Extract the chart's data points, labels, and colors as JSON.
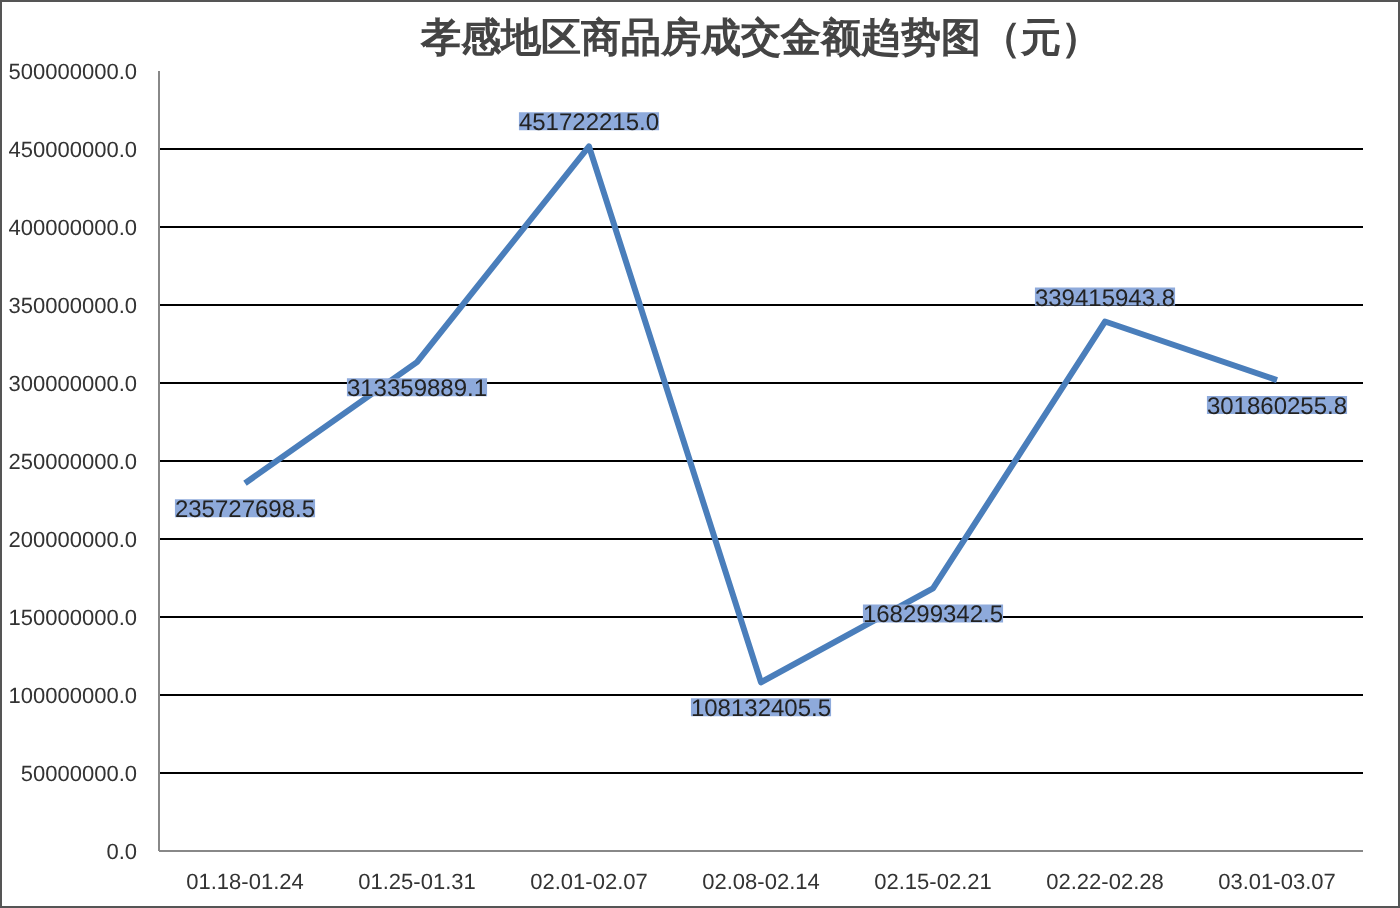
{
  "chart_data": {
    "type": "line",
    "title": "孝感地区商品房成交金额趋势图（元）",
    "categories": [
      "01.18-01.24",
      "01.25-01.31",
      "02.01-02.07",
      "02.08-02.14",
      "02.15-02.21",
      "02.22-02.28",
      "03.01-03.07"
    ],
    "series": [
      {
        "color": "#4a7ebb",
        "values": [
          235727698.5,
          313359889.1,
          451722215.0,
          108132405.5,
          168299342.5,
          339415943.8,
          301860255.8
        ],
        "value_labels": [
          "235727698.5",
          "313359889.1",
          "451722215.0",
          "108132405.5",
          "168299342.5",
          "339415943.8",
          "301860255.8"
        ]
      }
    ],
    "ylim": [
      0,
      500000000
    ],
    "yticks": [
      {
        "value": 0,
        "label": "0.0"
      },
      {
        "value": 50000000,
        "label": "50000000.0"
      },
      {
        "value": 100000000,
        "label": "100000000.0"
      },
      {
        "value": 150000000,
        "label": "150000000.0"
      },
      {
        "value": 200000000,
        "label": "200000000.0"
      },
      {
        "value": 250000000,
        "label": "250000000.0"
      },
      {
        "value": 300000000,
        "label": "300000000.0"
      },
      {
        "value": 350000000,
        "label": "350000000.0"
      },
      {
        "value": 400000000,
        "label": "400000000.0"
      },
      {
        "value": 450000000,
        "label": "450000000.0"
      },
      {
        "value": 500000000,
        "label": "500000000.0"
      }
    ],
    "grid": "y",
    "marker": "none",
    "line_style": "solid"
  }
}
